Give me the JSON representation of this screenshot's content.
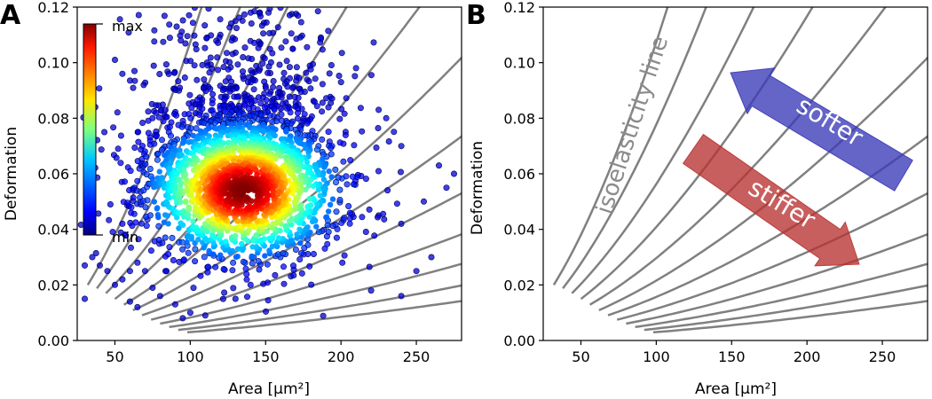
{
  "chart_data": [
    {
      "panel": "A",
      "type": "scatter",
      "xlabel": "Area [μm²]",
      "ylabel": "Deformation",
      "xlim": [
        25,
        280
      ],
      "ylim": [
        0,
        0.12
      ],
      "xticks": [
        50,
        100,
        150,
        200,
        250
      ],
      "yticks": [
        0.0,
        0.02,
        0.04,
        0.06,
        0.08,
        0.1,
        0.12
      ],
      "xtick_labels": [
        "50",
        "100",
        "150",
        "200",
        "250"
      ],
      "ytick_labels": [
        "0.00",
        "0.02",
        "0.04",
        "0.06",
        "0.08",
        "0.10",
        "0.12"
      ],
      "colorbar": {
        "max_label": "max",
        "min_label": "min",
        "colormap": "jet"
      },
      "density_center": {
        "x": 135,
        "y": 0.054
      },
      "density_spread": {
        "x": 28,
        "y": 0.011
      },
      "outlier_points": [
        [
          63,
          0.097
        ],
        [
          37,
          0.084
        ],
        [
          43,
          0.075
        ],
        [
          63,
          0.055
        ],
        [
          47,
          0.049
        ],
        [
          55,
          0.042
        ],
        [
          35,
          0.03
        ],
        [
          30,
          0.027
        ],
        [
          40,
          0.027
        ],
        [
          45,
          0.025
        ],
        [
          60,
          0.025
        ],
        [
          65,
          0.028
        ],
        [
          70,
          0.025
        ],
        [
          50,
          0.02
        ],
        [
          55,
          0.022
        ],
        [
          30,
          0.015
        ],
        [
          75,
          0.019
        ],
        [
          80,
          0.016
        ],
        [
          60,
          0.014
        ],
        [
          65,
          0.012
        ],
        [
          90,
          0.013
        ],
        [
          100,
          0.01
        ],
        [
          95,
          0.008
        ],
        [
          110,
          0.009
        ],
        [
          130,
          0.015
        ],
        [
          140,
          0.02
        ],
        [
          220,
          0.018
        ],
        [
          240,
          0.016
        ],
        [
          250,
          0.025
        ],
        [
          260,
          0.03
        ],
        [
          225,
          0.045
        ],
        [
          240,
          0.042
        ],
        [
          270,
          0.055
        ],
        [
          255,
          0.05
        ],
        [
          265,
          0.063
        ],
        [
          275,
          0.06
        ],
        [
          240,
          0.07
        ],
        [
          230,
          0.08
        ],
        [
          225,
          0.083
        ],
        [
          200,
          0.093
        ],
        [
          210,
          0.098
        ],
        [
          120,
          0.11
        ],
        [
          130,
          0.115
        ],
        [
          140,
          0.118
        ],
        [
          75,
          0.08
        ],
        [
          70,
          0.068
        ],
        [
          50,
          0.101
        ],
        [
          55,
          0.096
        ]
      ],
      "isoelasticity_lines": 12
    },
    {
      "panel": "B",
      "type": "line",
      "xlabel": "Area [μm²]",
      "ylabel": "Deformation",
      "xlim": [
        25,
        280
      ],
      "ylim": [
        0,
        0.12
      ],
      "xticks": [
        50,
        100,
        150,
        200,
        250
      ],
      "yticks": [
        0.0,
        0.02,
        0.04,
        0.06,
        0.08,
        0.1,
        0.12
      ],
      "xtick_labels": [
        "50",
        "100",
        "150",
        "200",
        "250"
      ],
      "ytick_labels": [
        "0.00",
        "0.02",
        "0.04",
        "0.06",
        "0.08",
        "0.10",
        "0.12"
      ],
      "annotations": {
        "isoelasticity": "isoelasticity line",
        "softer": "softer",
        "stiffer": "stiffer"
      },
      "arrow_colors": {
        "softer": "#3a3ab8",
        "stiffer": "#b83232"
      },
      "isoelasticity_lines": 12
    }
  ],
  "panel_letters": [
    "A",
    "B"
  ],
  "curve_color": "#808080"
}
